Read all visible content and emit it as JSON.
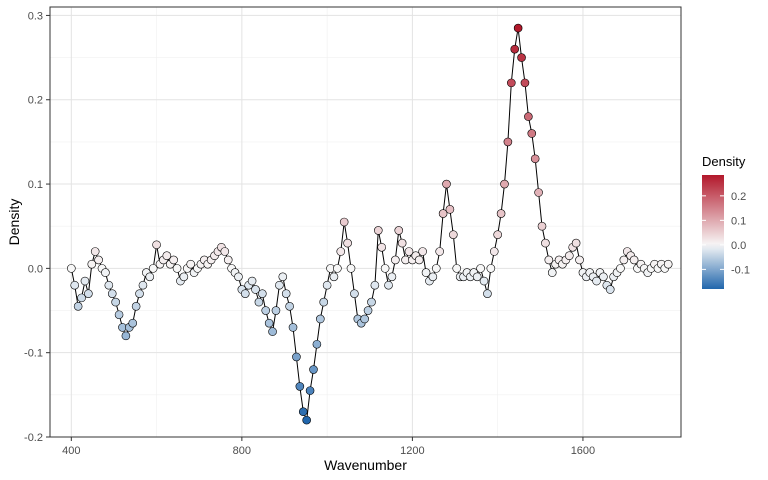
{
  "chart_data": {
    "type": "scatter",
    "xlabel": "Wavenumber",
    "ylabel": "Density",
    "xlim": [
      350,
      1830
    ],
    "ylim": [
      -0.2,
      0.31
    ],
    "xticks": [
      400,
      800,
      1200,
      1600
    ],
    "yticks": [
      -0.2,
      -0.1,
      0.0,
      0.1,
      0.2,
      0.3
    ],
    "xtick_labels": [
      "400",
      "800",
      "1200",
      "1600"
    ],
    "ytick_labels": [
      "-0.2",
      "-0.1",
      "0.0",
      "0.1",
      "0.2",
      "0.3"
    ],
    "grid": true,
    "line_connects_points": true,
    "color_scale": {
      "title": "Density",
      "low_color": "#2166ac",
      "mid_color": "#f7f7f7",
      "high_color": "#b2182b",
      "range": [
        -0.18,
        0.285
      ],
      "ticks": [
        -0.1,
        0.0,
        0.1,
        0.2
      ],
      "tick_labels": [
        "-0.1",
        "0.0",
        "0.1",
        "0.2"
      ]
    },
    "legend_position": "right",
    "x": [
      400,
      408,
      416,
      424,
      432,
      440,
      448,
      456,
      464,
      472,
      480,
      488,
      496,
      504,
      512,
      520,
      528,
      536,
      544,
      552,
      560,
      568,
      576,
      584,
      592,
      600,
      608,
      616,
      624,
      632,
      640,
      648,
      656,
      664,
      672,
      680,
      688,
      696,
      704,
      712,
      720,
      728,
      736,
      744,
      752,
      760,
      768,
      776,
      784,
      792,
      800,
      808,
      816,
      824,
      832,
      840,
      848,
      856,
      864,
      872,
      880,
      888,
      896,
      904,
      912,
      920,
      928,
      936,
      944,
      952,
      960,
      968,
      976,
      984,
      992,
      1000,
      1008,
      1016,
      1024,
      1032,
      1040,
      1048,
      1056,
      1064,
      1072,
      1080,
      1088,
      1096,
      1104,
      1112,
      1120,
      1128,
      1136,
      1144,
      1152,
      1160,
      1168,
      1176,
      1184,
      1192,
      1200,
      1208,
      1216,
      1224,
      1232,
      1240,
      1248,
      1256,
      1264,
      1272,
      1280,
      1288,
      1296,
      1304,
      1312,
      1320,
      1328,
      1336,
      1344,
      1352,
      1360,
      1368,
      1376,
      1384,
      1392,
      1400,
      1408,
      1416,
      1424,
      1432,
      1440,
      1448,
      1456,
      1464,
      1472,
      1480,
      1488,
      1496,
      1504,
      1512,
      1520,
      1528,
      1536,
      1544,
      1552,
      1560,
      1568,
      1576,
      1584,
      1592,
      1600,
      1608,
      1616,
      1624,
      1632,
      1640,
      1648,
      1656,
      1664,
      1672,
      1680,
      1688,
      1696,
      1704,
      1712,
      1720,
      1728,
      1736,
      1744,
      1752,
      1760,
      1768,
      1776,
      1784,
      1792,
      1800
    ],
    "y": [
      0.0,
      -0.02,
      -0.045,
      -0.035,
      -0.015,
      -0.03,
      0.005,
      0.02,
      0.01,
      0.0,
      -0.005,
      -0.02,
      -0.03,
      -0.04,
      -0.055,
      -0.07,
      -0.08,
      -0.07,
      -0.065,
      -0.045,
      -0.03,
      -0.02,
      -0.005,
      -0.01,
      0.0,
      0.028,
      0.005,
      0.01,
      0.015,
      0.005,
      0.01,
      0.0,
      -0.015,
      -0.01,
      0.0,
      0.005,
      -0.005,
      0.0,
      0.005,
      0.01,
      0.005,
      0.01,
      0.015,
      0.02,
      0.025,
      0.02,
      0.01,
      0.0,
      -0.005,
      -0.01,
      -0.025,
      -0.03,
      -0.02,
      -0.015,
      -0.025,
      -0.04,
      -0.03,
      -0.05,
      -0.065,
      -0.075,
      -0.05,
      -0.02,
      -0.01,
      -0.03,
      -0.045,
      -0.07,
      -0.105,
      -0.14,
      -0.17,
      -0.18,
      -0.145,
      -0.12,
      -0.09,
      -0.06,
      -0.04,
      -0.02,
      0.0,
      -0.01,
      0.0,
      0.02,
      0.055,
      0.03,
      0.0,
      -0.03,
      -0.06,
      -0.065,
      -0.06,
      -0.05,
      -0.04,
      -0.02,
      0.045,
      0.025,
      0.0,
      -0.02,
      -0.01,
      0.01,
      0.045,
      0.03,
      0.01,
      0.02,
      0.01,
      0.015,
      0.01,
      0.02,
      -0.005,
      -0.015,
      -0.01,
      0.0,
      0.02,
      0.065,
      0.1,
      0.07,
      0.04,
      0.0,
      -0.01,
      -0.01,
      -0.005,
      -0.01,
      -0.005,
      -0.01,
      0.0,
      -0.015,
      -0.03,
      0.0,
      0.02,
      0.04,
      0.065,
      0.1,
      0.15,
      0.22,
      0.26,
      0.285,
      0.25,
      0.22,
      0.18,
      0.16,
      0.13,
      0.09,
      0.05,
      0.03,
      0.01,
      -0.005,
      0.005,
      0.01,
      0.005,
      0.01,
      0.015,
      0.025,
      0.03,
      0.01,
      -0.005,
      -0.01,
      -0.005,
      -0.01,
      -0.015,
      -0.005,
      -0.01,
      -0.02,
      -0.025,
      -0.01,
      -0.005,
      0.0,
      0.01,
      0.02,
      0.015,
      0.01,
      0.0,
      0.005,
      0.0,
      -0.005,
      0.0,
      0.005,
      0.0,
      0.005,
      0.0,
      0.005
    ]
  }
}
